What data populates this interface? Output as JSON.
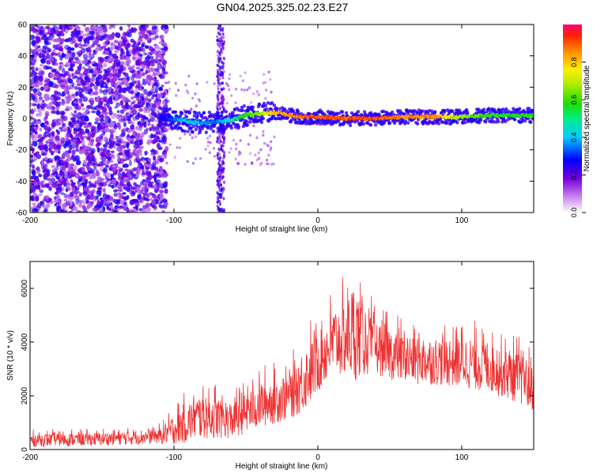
{
  "title": "GN04.2025.325.02.23.E27",
  "chart_data": [
    {
      "type": "heatmap",
      "xlabel": "Height of straight line (km)",
      "ylabel": "Frequency (Hz)",
      "xlim": [
        -200,
        150
      ],
      "ylim": [
        -60,
        60
      ],
      "xticks": [
        -200,
        -100,
        0,
        100
      ],
      "yticks": [
        -60,
        -40,
        -20,
        0,
        20,
        40,
        60
      ],
      "colorbar": {
        "label": "Normalized spectral amplitude",
        "range": [
          0,
          1
        ],
        "ticks": [
          0.0,
          0.2,
          0.4,
          0.6,
          0.8
        ]
      },
      "ridge": {
        "x": [
          -110,
          -100,
          -90,
          -80,
          -70,
          -60,
          -50,
          -40,
          -30,
          -20,
          -10,
          0,
          20,
          40,
          60,
          80,
          100,
          120,
          150
        ],
        "freq": [
          0,
          0,
          -2,
          -3,
          -2,
          -1,
          2,
          3,
          4,
          2,
          1,
          1,
          0,
          0,
          1,
          1,
          1,
          2,
          2
        ],
        "amplitude": [
          0.25,
          0.35,
          0.45,
          0.4,
          0.35,
          0.5,
          0.6,
          0.7,
          0.85,
          0.9,
          0.92,
          0.95,
          0.95,
          0.95,
          0.9,
          0.9,
          0.7,
          0.6,
          0.6
        ]
      },
      "noise_region": {
        "x": [
          -200,
          -105
        ],
        "amplitude": 0.25
      },
      "secondary_band": {
        "x": [
          -70,
          -65
        ],
        "amplitude": 0.25
      }
    },
    {
      "type": "line",
      "xlabel": "Height of straight line (km)",
      "ylabel": "SNR (10 * v/v)",
      "xlim": [
        -200,
        150
      ],
      "ylim": [
        0,
        7000
      ],
      "xticks": [
        -200,
        -100,
        0,
        100
      ],
      "yticks": [
        0,
        2000,
        4000,
        6000
      ],
      "color": "#ee3333",
      "envelope": {
        "x": [
          -200,
          -150,
          -110,
          -95,
          -80,
          -60,
          -40,
          -20,
          -10,
          0,
          10,
          20,
          25,
          30,
          40,
          60,
          80,
          100,
          120,
          140,
          150
        ],
        "mean": [
          350,
          400,
          500,
          900,
          1300,
          1100,
          1700,
          2000,
          2600,
          3300,
          4000,
          4200,
          4400,
          4200,
          3800,
          3400,
          3300,
          3300,
          3100,
          2700,
          2300
        ],
        "spread": [
          250,
          250,
          300,
          700,
          900,
          700,
          900,
          900,
          1200,
          1200,
          1300,
          1500,
          1900,
          1500,
          1000,
          1000,
          900,
          1000,
          1000,
          1000,
          900
        ]
      }
    }
  ]
}
